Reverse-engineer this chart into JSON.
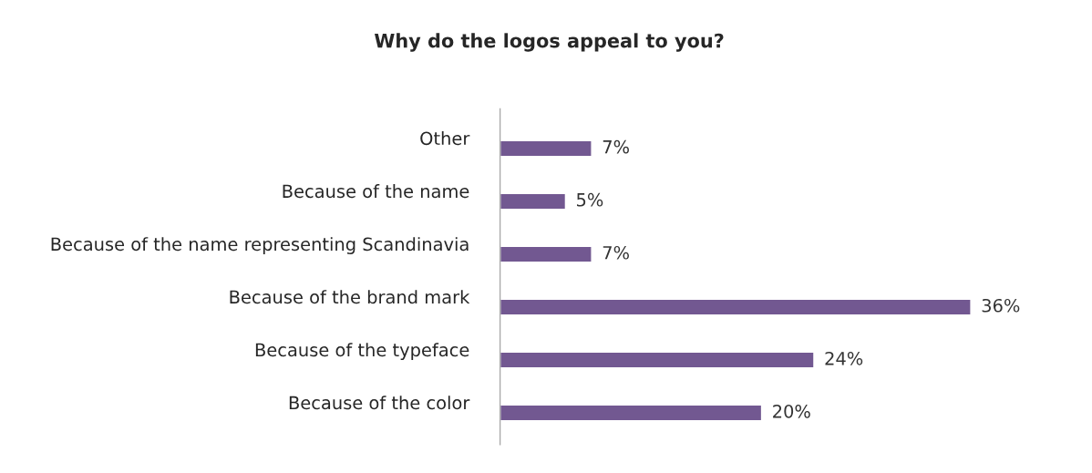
{
  "chart_data": {
    "type": "bar",
    "orientation": "horizontal",
    "title": "Why do the logos appeal to you?",
    "categories": [
      "Other",
      "Because of the name",
      "Because of the name representing Scandinavia",
      "Because of the brand mark",
      "Because of the typeface",
      "Because of the color"
    ],
    "values": [
      7,
      5,
      7,
      36,
      24,
      20
    ],
    "value_labels": [
      "7%",
      "5%",
      "7%",
      "36%",
      "24%",
      "20%"
    ],
    "color": "#725891",
    "grid": false,
    "legend": false
  }
}
